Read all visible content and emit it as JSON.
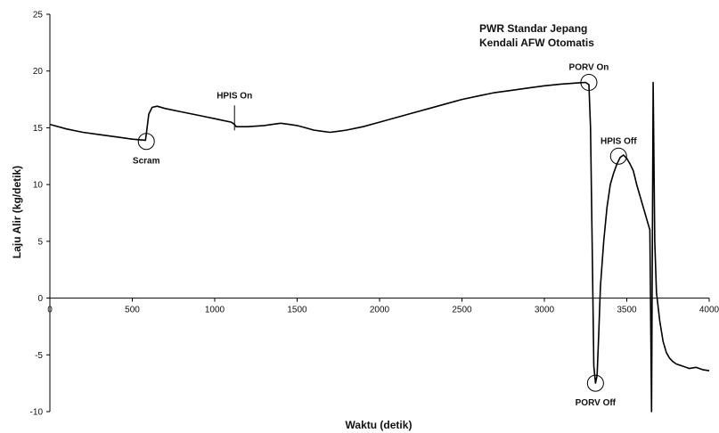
{
  "chart_data": {
    "type": "line",
    "xlabel": "Waktu (detik)",
    "ylabel": "Laju Alir (kg/detik)",
    "xlim": [
      0,
      4000
    ],
    "ylim": [
      -10,
      25
    ],
    "xticks": [
      0,
      500,
      1000,
      1500,
      2000,
      2500,
      3000,
      3500,
      4000
    ],
    "yticks": [
      -10,
      -5,
      0,
      5,
      10,
      15,
      20,
      25
    ],
    "grid": false,
    "info_lines": [
      "PWR Standar Jepang",
      "Kendali AFW Otomatis"
    ],
    "series": [
      {
        "color": "#000000",
        "x": [
          0,
          100,
          200,
          300,
          400,
          500,
          580,
          590,
          600,
          620,
          650,
          700,
          800,
          900,
          1000,
          1100,
          1120,
          1130,
          1200,
          1300,
          1350,
          1400,
          1450,
          1500,
          1550,
          1600,
          1650,
          1700,
          1750,
          1800,
          1900,
          2000,
          2100,
          2200,
          2300,
          2400,
          2500,
          2600,
          2700,
          2800,
          2900,
          3000,
          3100,
          3200,
          3250,
          3270,
          3280,
          3290,
          3300,
          3310,
          3320,
          3330,
          3340,
          3360,
          3380,
          3400,
          3420,
          3440,
          3460,
          3480,
          3500,
          3520,
          3540,
          3560,
          3580,
          3600,
          3620,
          3640,
          3650,
          3660,
          3670,
          3680,
          3700,
          3720,
          3740,
          3760,
          3780,
          3800,
          3840,
          3880,
          3920,
          3960,
          4000
        ],
        "y": [
          15.3,
          14.9,
          14.6,
          14.4,
          14.2,
          14.0,
          13.9,
          15.0,
          16.2,
          16.8,
          16.9,
          16.7,
          16.4,
          16.1,
          15.8,
          15.5,
          15.3,
          15.1,
          15.1,
          15.2,
          15.3,
          15.4,
          15.3,
          15.2,
          15.0,
          14.8,
          14.7,
          14.6,
          14.7,
          14.8,
          15.1,
          15.5,
          15.9,
          16.3,
          16.7,
          17.1,
          17.5,
          17.8,
          18.1,
          18.3,
          18.5,
          18.7,
          18.85,
          18.95,
          19.0,
          18.8,
          15.0,
          5.0,
          -6.0,
          -7.5,
          -6.8,
          -3.0,
          1.0,
          5.0,
          8.0,
          10.0,
          11.0,
          11.8,
          12.4,
          12.6,
          12.3,
          11.8,
          11.2,
          10.0,
          9.0,
          8.0,
          7.0,
          6.0,
          -10.0,
          19.0,
          5.0,
          0.5,
          -2.0,
          -3.8,
          -4.8,
          -5.3,
          -5.6,
          -5.8,
          -6.0,
          -6.2,
          -6.1,
          -6.3,
          -6.4
        ]
      }
    ],
    "annotations": [
      {
        "label": "Scram",
        "x": 585,
        "y": 13.8,
        "circle": true,
        "pos": "below"
      },
      {
        "label": "HPIS On",
        "x": 1120,
        "y": 16.5,
        "circle": false,
        "pos": "above"
      },
      {
        "label": "PORV On",
        "x": 3270,
        "y": 19.0,
        "circle": true,
        "pos": "above"
      },
      {
        "label": "HPIS Off",
        "x": 3450,
        "y": 12.5,
        "circle": true,
        "pos": "above"
      },
      {
        "label": "PORV Off",
        "x": 3310,
        "y": -7.5,
        "circle": true,
        "pos": "below"
      }
    ]
  }
}
